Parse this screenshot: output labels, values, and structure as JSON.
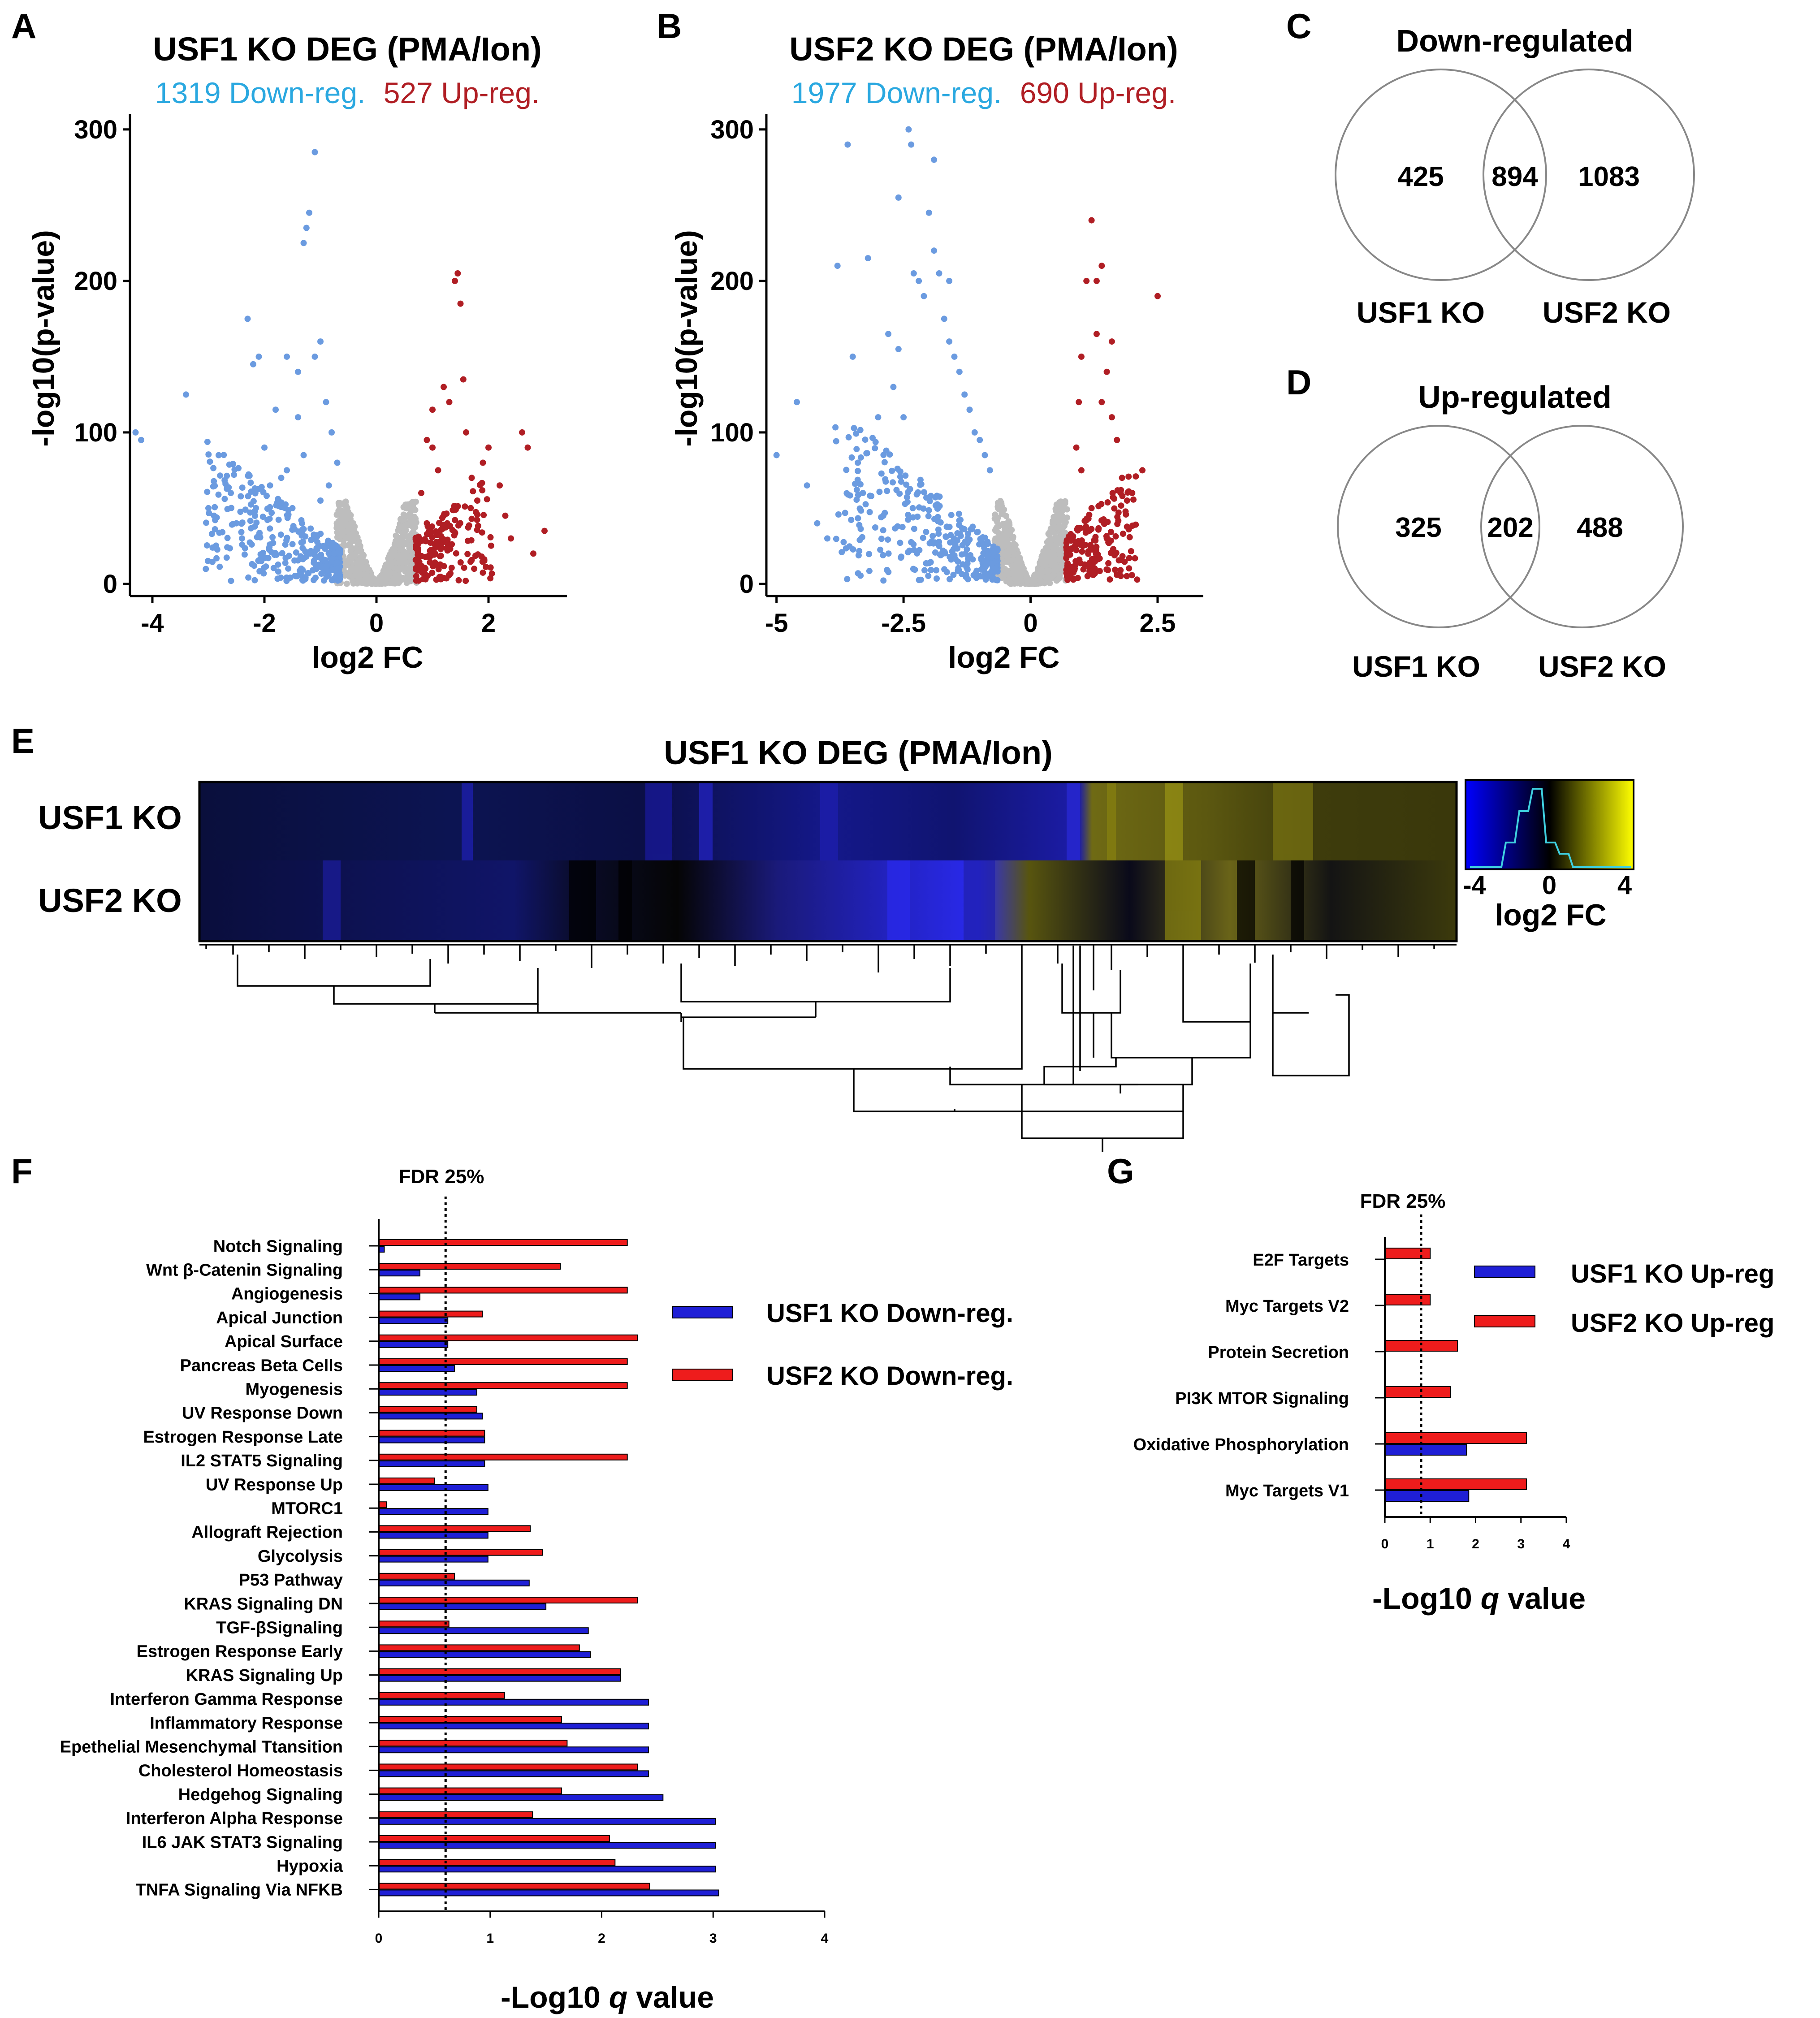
{
  "panels": {
    "A": "A",
    "B": "B",
    "C": "C",
    "D": "D",
    "E": "E",
    "F": "F",
    "G": "G"
  },
  "colors": {
    "down": "#6b9be0",
    "up": "#b01e24",
    "ns": "#bdbdbd",
    "down_text": "#2aa8e0",
    "up_text": "#b01e24",
    "usf1_bar": "#1f1fd6",
    "usf2_bar": "#ee1c1c"
  },
  "chart_data": [
    {
      "id": "A",
      "type": "scatter",
      "title": "USF1 KO DEG (PMA/Ion)",
      "down_label": "1319 Down-reg.",
      "up_label": "527 Up-reg.",
      "xlabel": "log2 FC",
      "ylabel": "-log10(p-value)",
      "xlim": [
        -4.4,
        3.4
      ],
      "ylim": [
        -8,
        310
      ],
      "xticks": [
        "-4",
        "-2",
        "0",
        "2"
      ],
      "xtick_values": [
        -4,
        -2,
        0,
        2
      ],
      "yticks": [
        "0",
        "100",
        "200",
        "300"
      ],
      "ytick_values": [
        0,
        100,
        200,
        300
      ],
      "down_points": [
        [
          -4.3,
          100
        ],
        [
          -4.2,
          95
        ],
        [
          -3.4,
          125
        ],
        [
          -3.0,
          50
        ],
        [
          -2.9,
          45
        ],
        [
          -2.6,
          60
        ],
        [
          -2.5,
          40
        ],
        [
          -2.4,
          30
        ],
        [
          -2.3,
          175
        ],
        [
          -2.2,
          145
        ],
        [
          -2.1,
          150
        ],
        [
          -2.0,
          90
        ],
        [
          -1.9,
          65
        ],
        [
          -1.8,
          115
        ],
        [
          -1.7,
          70
        ],
        [
          -1.6,
          150
        ],
        [
          -1.5,
          50
        ],
        [
          -1.4,
          110
        ],
        [
          -1.3,
          85
        ],
        [
          -1.2,
          245
        ],
        [
          -1.25,
          235
        ],
        [
          -1.3,
          225
        ],
        [
          -1.1,
          285
        ],
        [
          -1.0,
          160
        ],
        [
          -0.9,
          120
        ],
        [
          -0.8,
          100
        ],
        [
          -0.7,
          80
        ],
        [
          -1.1,
          150
        ],
        [
          -1.4,
          140
        ],
        [
          -1.6,
          75
        ],
        [
          -1.0,
          55
        ],
        [
          -0.85,
          65
        ]
      ],
      "up_points": [
        [
          0.8,
          60
        ],
        [
          0.9,
          40
        ],
        [
          1.0,
          90
        ],
        [
          1.1,
          75
        ],
        [
          1.2,
          45
        ],
        [
          1.3,
          120
        ],
        [
          1.4,
          200
        ],
        [
          1.45,
          205
        ],
        [
          1.5,
          185
        ],
        [
          1.55,
          135
        ],
        [
          1.6,
          100
        ],
        [
          1.7,
          70
        ],
        [
          1.8,
          55
        ],
        [
          1.9,
          80
        ],
        [
          2.0,
          90
        ],
        [
          2.2,
          65
        ],
        [
          2.3,
          45
        ],
        [
          2.4,
          30
        ],
        [
          2.6,
          100
        ],
        [
          2.7,
          90
        ],
        [
          2.8,
          20
        ],
        [
          3.0,
          35
        ],
        [
          1.2,
          130
        ],
        [
          1.0,
          115
        ],
        [
          0.9,
          95
        ],
        [
          1.1,
          25
        ]
      ]
    },
    {
      "id": "B",
      "type": "scatter",
      "title": "USF2 KO DEG (PMA/Ion)",
      "down_label": "1977 Down-reg.",
      "up_label": "690 Up-reg.",
      "xlabel": "log2 FC",
      "ylabel": "-log10(p-value)",
      "xlim": [
        -5.2,
        3.4
      ],
      "ylim": [
        -8,
        310
      ],
      "xticks": [
        "-5",
        "-2.5",
        "0",
        "2.5"
      ],
      "xtick_values": [
        -5,
        -2.5,
        0,
        2.5
      ],
      "yticks": [
        "0",
        "100",
        "200",
        "300"
      ],
      "ytick_values": [
        0,
        100,
        200,
        300
      ],
      "down_points": [
        [
          -5.0,
          85
        ],
        [
          -4.6,
          120
        ],
        [
          -4.4,
          65
        ],
        [
          -4.2,
          40
        ],
        [
          -4.0,
          30
        ],
        [
          -3.8,
          210
        ],
        [
          -3.6,
          290
        ],
        [
          -3.5,
          150
        ],
        [
          -3.4,
          80
        ],
        [
          -3.3,
          60
        ],
        [
          -3.2,
          215
        ],
        [
          -3.0,
          110
        ],
        [
          -2.9,
          45
        ],
        [
          -2.8,
          165
        ],
        [
          -2.7,
          130
        ],
        [
          -2.6,
          155
        ],
        [
          -2.5,
          110
        ],
        [
          -2.4,
          300
        ],
        [
          -2.35,
          290
        ],
        [
          -2.2,
          200
        ],
        [
          -2.1,
          190
        ],
        [
          -2.0,
          245
        ],
        [
          -1.9,
          220
        ],
        [
          -1.8,
          205
        ],
        [
          -1.7,
          175
        ],
        [
          -1.6,
          160
        ],
        [
          -1.5,
          150
        ],
        [
          -1.4,
          140
        ],
        [
          -1.3,
          125
        ],
        [
          -1.2,
          115
        ],
        [
          -1.1,
          100
        ],
        [
          -1.0,
          95
        ],
        [
          -0.9,
          85
        ],
        [
          -0.8,
          75
        ],
        [
          -2.6,
          255
        ],
        [
          -2.3,
          205
        ],
        [
          -1.9,
          280
        ],
        [
          -1.6,
          200
        ]
      ],
      "up_points": [
        [
          1.0,
          150
        ],
        [
          1.1,
          200
        ],
        [
          1.2,
          240
        ],
        [
          1.3,
          165
        ],
        [
          1.4,
          120
        ],
        [
          1.5,
          140
        ],
        [
          1.6,
          110
        ],
        [
          1.7,
          95
        ],
        [
          1.8,
          70
        ],
        [
          1.9,
          55
        ],
        [
          2.0,
          60
        ],
        [
          2.2,
          75
        ],
        [
          2.5,
          190
        ],
        [
          0.9,
          90
        ],
        [
          1.0,
          75
        ],
        [
          1.2,
          50
        ],
        [
          1.5,
          30
        ],
        [
          1.6,
          160
        ],
        [
          1.3,
          200
        ],
        [
          1.4,
          210
        ],
        [
          0.95,
          120
        ],
        [
          1.1,
          35
        ]
      ]
    },
    {
      "id": "C",
      "type": "venn",
      "title": "Down-regulated",
      "left_only": "425",
      "overlap": "894",
      "right_only": "1083",
      "left_label": "USF1 KO",
      "right_label": "USF2 KO"
    },
    {
      "id": "D",
      "type": "venn",
      "title": "Up-regulated",
      "left_only": "325",
      "overlap": "202",
      "right_only": "488",
      "left_label": "USF1 KO",
      "right_label": "USF2 KO"
    },
    {
      "id": "E",
      "type": "heatmap",
      "title": "USF1 KO DEG (PMA/Ion)",
      "rows": [
        "USF1 KO",
        "USF2 KO"
      ],
      "colorbar_ticks": [
        "-4",
        "0",
        "4"
      ],
      "colorbar_label": "log2 FC",
      "colorbar_range": [
        -4,
        4
      ]
    },
    {
      "id": "F",
      "type": "bar",
      "orientation": "horizontal",
      "xlabel_prefix": "-Log10 ",
      "xlabel_italic": "q",
      "xlabel_suffix": " value",
      "xlim": [
        0,
        4
      ],
      "xticks": [
        "0",
        "1",
        "2",
        "3",
        "4"
      ],
      "xtick_values": [
        0,
        1,
        2,
        3,
        4
      ],
      "fdr_label": "FDR 25%",
      "fdr_value": 0.6,
      "categories": [
        "Notch Signaling",
        "Wnt β-Catenin Signaling",
        "Angiogenesis",
        "Apical Junction",
        "Apical Surface",
        "Pancreas Beta Cells",
        "Myogenesis",
        "UV Response Down",
        "Estrogen Response Late",
        "IL2 STAT5 Signaling",
        "UV Response Up",
        "MTORC1",
        "Allograft Rejection",
        "Glycolysis",
        "P53 Pathway",
        "KRAS Signaling DN",
        "TGF-βSignaling",
        "Estrogen Response Early",
        "KRAS Signaling Up",
        "Interferon Gamma Response",
        "Inflammatory Response",
        "Epethelial Mesenchymal Ttansition",
        "Cholesterol Homeostasis",
        "Hedgehog Signaling",
        "Interferon Alpha Response",
        "IL6 JAK STAT3 Signaling",
        "Hypoxia",
        "TNFA Signaling Via NFKB"
      ],
      "series": [
        {
          "name": "USF1 KO Down-reg.",
          "values": [
            0.05,
            0.37,
            0.37,
            0.62,
            0.62,
            0.68,
            0.88,
            0.93,
            0.95,
            0.95,
            0.98,
            0.98,
            0.98,
            0.98,
            1.35,
            1.5,
            1.88,
            1.9,
            2.17,
            2.42,
            2.42,
            2.42,
            2.42,
            2.55,
            3.02,
            3.02,
            3.02,
            3.05
          ]
        },
        {
          "name": "USF2 KO Down-reg.",
          "values": [
            2.23,
            1.63,
            2.23,
            0.93,
            2.32,
            2.23,
            2.23,
            0.88,
            0.95,
            2.23,
            0.5,
            0.07,
            1.36,
            1.47,
            0.68,
            2.32,
            0.63,
            1.8,
            2.17,
            1.13,
            1.64,
            1.69,
            2.32,
            1.64,
            1.38,
            2.07,
            2.12,
            2.43
          ]
        }
      ],
      "legend": [
        "USF1 KO Down-reg.",
        "USF2 KO Down-reg."
      ]
    },
    {
      "id": "G",
      "type": "bar",
      "orientation": "horizontal",
      "xlabel_prefix": "-Log10 ",
      "xlabel_italic": "q",
      "xlabel_suffix": " value",
      "xlim": [
        0,
        4
      ],
      "xticks": [
        "0",
        "1",
        "2",
        "3",
        "4"
      ],
      "xtick_values": [
        0,
        1,
        2,
        3,
        4
      ],
      "fdr_label": "FDR 25%",
      "fdr_value": 0.8,
      "categories": [
        "E2F Targets",
        "Myc Targets V2",
        "Protein Secretion",
        "PI3K MTOR Signaling",
        "Oxidative Phosphorylation",
        "Myc Targets V1"
      ],
      "series": [
        {
          "name": "USF1 KO Up-reg",
          "values": [
            0,
            0,
            0,
            0,
            1.8,
            1.85
          ]
        },
        {
          "name": "USF2 KO Up-reg",
          "values": [
            1.0,
            1.0,
            1.6,
            1.45,
            3.12,
            3.12
          ]
        }
      ],
      "legend": [
        "USF1 KO Up-reg",
        "USF2 KO Up-reg"
      ]
    }
  ]
}
